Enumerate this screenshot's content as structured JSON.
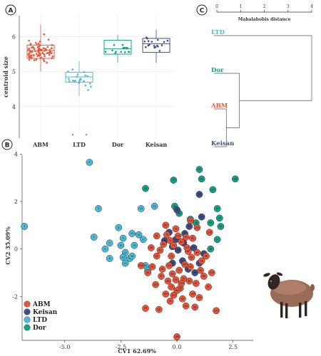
{
  "panels": {
    "a": "A",
    "b": "B",
    "c": "C"
  },
  "colors": {
    "ABM": "#e8553a",
    "LTD": "#4bbad8",
    "Dor": "#13a388",
    "Keisan": "#3c4f8c"
  },
  "chart_data": [
    {
      "type": "box",
      "id": "A",
      "ylabel": "centroid size",
      "yticks": [
        "4",
        "5",
        "6"
      ],
      "ylim": [
        3.1,
        6.6
      ],
      "categories": [
        "ABM",
        "LTD",
        "Dor",
        "Keisan"
      ],
      "boxes": [
        {
          "name": "ABM",
          "min": 5.0,
          "q1": 5.38,
          "median": 5.6,
          "q3": 5.76,
          "max": 6.35
        },
        {
          "name": "LTD",
          "min": 4.3,
          "q1": 4.7,
          "median": 4.85,
          "q3": 4.98,
          "max": 5.3
        },
        {
          "name": "Dor",
          "min": 5.25,
          "q1": 5.5,
          "median": 5.65,
          "q3": 5.9,
          "max": 6.05
        },
        {
          "name": "Keisan",
          "min": 5.25,
          "q1": 5.55,
          "median": 5.8,
          "q3": 5.95,
          "max": 6.2
        }
      ],
      "outliers": [
        {
          "group": "LTD",
          "values": [
            3.2,
            3.2
          ]
        }
      ],
      "grid": true
    },
    {
      "type": "dendrogram",
      "id": "C",
      "xlabel": "Mahalahobis distance",
      "xticks": [
        "0",
        "1",
        "2",
        "3",
        "4"
      ],
      "xlim": [
        0,
        4
      ],
      "leaves": [
        "LTD",
        "Dor",
        "ABM",
        "Keisan"
      ],
      "merges": [
        {
          "members": [
            "ABM",
            "Keisan"
          ],
          "height": 0.4
        },
        {
          "members": [
            "Dor",
            "ABM",
            "Keisan"
          ],
          "height": 0.95
        },
        {
          "members": [
            "LTD",
            "Dor",
            "ABM",
            "Keisan"
          ],
          "height": 4.0
        }
      ]
    },
    {
      "type": "scatter",
      "id": "B",
      "xlabel": "CV1 62.69%",
      "ylabel": "CV2 35.09%",
      "xticks": [
        "-5.0",
        "-2.5",
        "0.0",
        "2.5"
      ],
      "yticks": [
        "-2",
        "0",
        "2",
        "4"
      ],
      "xlim": [
        -6.9,
        3.4
      ],
      "ylim": [
        -3.85,
        3.95
      ],
      "legend": [
        "ABM",
        "Keisan",
        "LTD",
        "Dor"
      ],
      "legend_position": "bottom-left",
      "series": [
        {
          "name": "LTD",
          "points": [
            [
              -6.8,
              0.95
            ],
            [
              -3.9,
              3.65
            ],
            [
              -3.5,
              1.7
            ],
            [
              -3.7,
              0.5
            ],
            [
              -3.2,
              0.0
            ],
            [
              -3.0,
              -0.4
            ],
            [
              -3.0,
              0.25
            ],
            [
              -2.6,
              0.9
            ],
            [
              -2.4,
              0.45
            ],
            [
              -2.5,
              0.15
            ],
            [
              -2.3,
              -0.15
            ],
            [
              -2.1,
              -0.4
            ],
            [
              -2.3,
              -0.6
            ],
            [
              -2.0,
              -0.3
            ],
            [
              -1.9,
              0.15
            ],
            [
              -1.7,
              0.6
            ],
            [
              -1.5,
              0.4
            ],
            [
              -1.4,
              -0.7
            ],
            [
              -1.6,
              1.7
            ],
            [
              -1.3,
              -0.9
            ],
            [
              -2.0,
              0.65
            ],
            [
              -1.0,
              1.8
            ],
            [
              -2.4,
              -0.35
            ]
          ]
        },
        {
          "name": "Dor",
          "points": [
            [
              1.0,
              3.35
            ],
            [
              1.1,
              2.95
            ],
            [
              2.6,
              2.95
            ],
            [
              -0.15,
              2.9
            ],
            [
              -1.4,
              2.55
            ],
            [
              1.6,
              2.5
            ],
            [
              -0.1,
              1.8
            ],
            [
              1.8,
              1.7
            ],
            [
              1.9,
              1.3
            ],
            [
              1.5,
              1.1
            ],
            [
              0.6,
              1.25
            ],
            [
              1.95,
              0.95
            ],
            [
              0.1,
              1.5
            ],
            [
              1.8,
              0.4
            ],
            [
              0.85,
              1.1
            ],
            [
              1.5,
              0.0
            ]
          ]
        },
        {
          "name": "Keisan",
          "points": [
            [
              1.0,
              2.3
            ],
            [
              0.0,
              1.65
            ],
            [
              1.1,
              1.35
            ],
            [
              0.55,
              0.95
            ],
            [
              0.35,
              0.65
            ],
            [
              -0.35,
              0.7
            ],
            [
              -0.55,
              0.35
            ],
            [
              -0.2,
              0.1
            ],
            [
              0.05,
              -0.05
            ],
            [
              -0.05,
              0.4
            ],
            [
              0.3,
              0.25
            ],
            [
              0.75,
              0.05
            ],
            [
              0.25,
              -0.5
            ],
            [
              1.2,
              -0.2
            ],
            [
              0.5,
              -0.85
            ],
            [
              -0.2,
              -0.6
            ],
            [
              0.8,
              -1.0
            ],
            [
              1.0,
              -0.6
            ]
          ]
        },
        {
          "name": "ABM",
          "points": [
            [
              -1.15,
              0.05
            ],
            [
              -1.1,
              -0.75
            ],
            [
              -1.3,
              -1.0
            ],
            [
              -0.9,
              0.55
            ],
            [
              -0.75,
              -0.05
            ],
            [
              -0.9,
              -0.3
            ],
            [
              -0.65,
              -0.85
            ],
            [
              -0.5,
              1.0
            ],
            [
              -0.6,
              0.2
            ],
            [
              -0.7,
              -1.15
            ],
            [
              -0.4,
              -1.35
            ],
            [
              -0.2,
              -1.05
            ],
            [
              -0.45,
              0.6
            ],
            [
              -0.3,
              0.35
            ],
            [
              -0.25,
              -0.3
            ],
            [
              -0.05,
              0.85
            ],
            [
              -0.15,
              0.15
            ],
            [
              0.1,
              -0.9
            ],
            [
              -0.05,
              -1.3
            ],
            [
              -0.25,
              -1.6
            ],
            [
              0.15,
              -1.65
            ],
            [
              0.3,
              -1.25
            ],
            [
              0.4,
              0.5
            ],
            [
              0.5,
              -0.1
            ],
            [
              0.2,
              0.3
            ],
            [
              0.65,
              -0.35
            ],
            [
              0.9,
              -0.15
            ],
            [
              0.7,
              0.45
            ],
            [
              0.55,
              -1.35
            ],
            [
              0.85,
              -1.45
            ],
            [
              1.05,
              -0.9
            ],
            [
              1.2,
              -1.15
            ],
            [
              0.25,
              -2.1
            ],
            [
              -0.3,
              -2.2
            ],
            [
              -0.8,
              -2.55
            ],
            [
              -1.4,
              -2.5
            ],
            [
              0.4,
              -2.4
            ],
            [
              1.0,
              -2.05
            ],
            [
              0.8,
              -2.45
            ],
            [
              1.4,
              -1.6
            ],
            [
              1.1,
              -0.5
            ],
            [
              1.3,
              -0.3
            ],
            [
              -0.5,
              -1.9
            ],
            [
              0.0,
              -1.75
            ],
            [
              0.6,
              -0.75
            ],
            [
              -0.95,
              -1.5
            ],
            [
              -1.6,
              -0.7
            ],
            [
              0.35,
              -0.65
            ],
            [
              0.05,
              0.55
            ],
            [
              -0.15,
              -1.95
            ],
            [
              0.0,
              -3.7
            ],
            [
              0.7,
              -1.9
            ],
            [
              1.55,
              -1.0
            ],
            [
              1.75,
              -2.6
            ],
            [
              0.9,
              0.9
            ],
            [
              0.6,
              1.2
            ],
            [
              -0.35,
              -0.7
            ],
            [
              0.2,
              -1.45
            ],
            [
              1.45,
              0.7
            ],
            [
              0.45,
              0.05
            ]
          ]
        }
      ]
    }
  ]
}
